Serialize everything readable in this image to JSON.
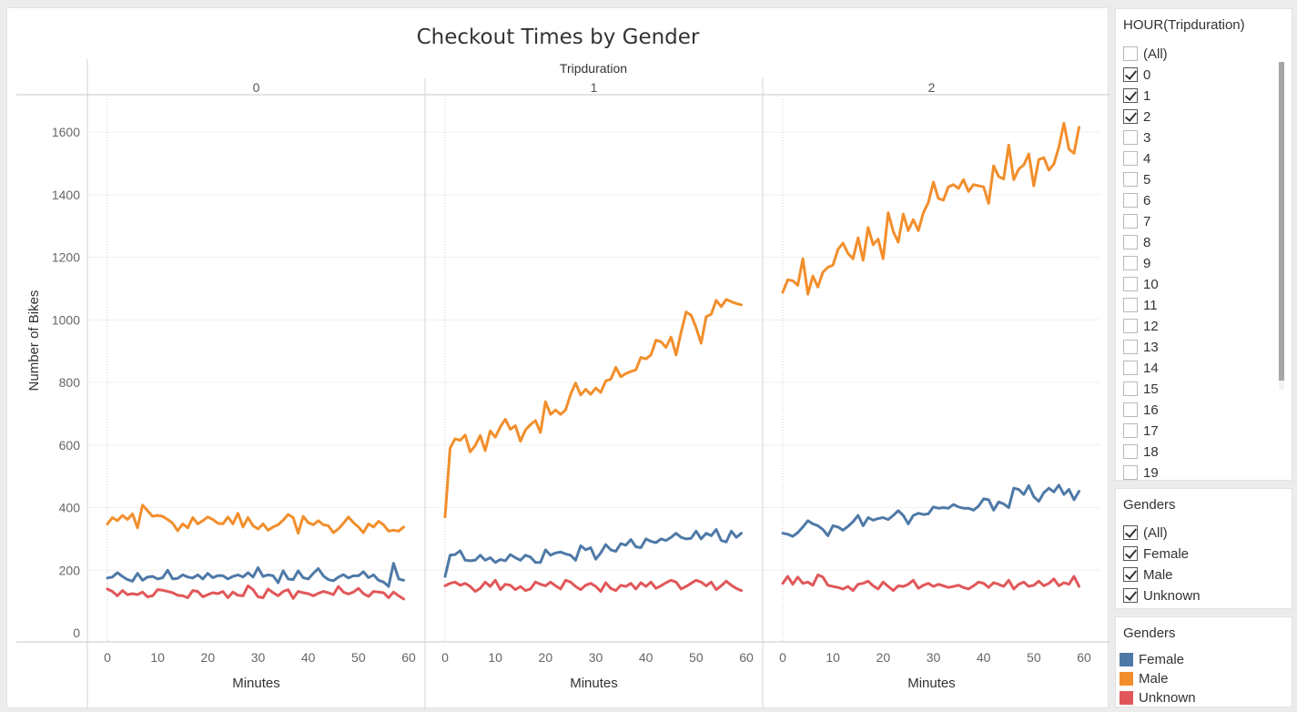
{
  "chart_data": {
    "type": "line",
    "title": "Checkout Times by Gender",
    "column_header": "Tripduration",
    "panes": [
      "0",
      "1",
      "2"
    ],
    "xlabel": "Minutes",
    "ylabel": "Number of Bikes",
    "xlim": [
      0,
      60
    ],
    "ylim": [
      0,
      1700
    ],
    "x_ticks": [
      0,
      10,
      20,
      30,
      40,
      50,
      60
    ],
    "y_ticks": [
      0,
      200,
      400,
      600,
      800,
      1000,
      1200,
      1400,
      1600
    ],
    "grid": true,
    "legend_position": "right",
    "x": [
      0,
      1,
      2,
      3,
      4,
      5,
      6,
      7,
      8,
      9,
      10,
      11,
      12,
      13,
      14,
      15,
      16,
      17,
      18,
      19,
      20,
      21,
      22,
      23,
      24,
      25,
      26,
      27,
      28,
      29,
      30,
      31,
      32,
      33,
      34,
      35,
      36,
      37,
      38,
      39,
      40,
      41,
      42,
      43,
      44,
      45,
      46,
      47,
      48,
      49,
      50,
      51,
      52,
      53,
      54,
      55,
      56,
      57,
      58,
      59
    ],
    "series": [
      {
        "name": "Female",
        "color": "#4e79a7",
        "values_by_pane": [
          [
            175,
            178,
            192,
            180,
            170,
            165,
            190,
            168,
            178,
            180,
            172,
            176,
            200,
            172,
            174,
            185,
            178,
            175,
            185,
            172,
            190,
            176,
            183,
            182,
            172,
            180,
            185,
            178,
            192,
            178,
            208,
            180,
            185,
            182,
            160,
            198,
            172,
            170,
            198,
            176,
            172,
            190,
            205,
            182,
            170,
            166,
            178,
            186,
            175,
            182,
            182,
            195,
            176,
            185,
            168,
            162,
            148,
            222,
            172,
            168
          ],
          [
            180,
            248,
            250,
            262,
            232,
            230,
            232,
            248,
            232,
            240,
            225,
            234,
            230,
            250,
            240,
            232,
            248,
            242,
            225,
            225,
            265,
            248,
            255,
            258,
            252,
            248,
            232,
            278,
            265,
            272,
            235,
            255,
            282,
            265,
            260,
            285,
            280,
            298,
            275,
            272,
            300,
            292,
            288,
            300,
            295,
            305,
            318,
            305,
            300,
            302,
            325,
            300,
            318,
            310,
            330,
            295,
            290,
            325,
            305,
            318
          ],
          [
            318,
            315,
            308,
            320,
            338,
            358,
            348,
            342,
            330,
            310,
            342,
            338,
            328,
            340,
            355,
            375,
            342,
            368,
            360,
            365,
            368,
            362,
            375,
            390,
            375,
            348,
            375,
            382,
            378,
            380,
            402,
            398,
            400,
            398,
            410,
            402,
            398,
            398,
            392,
            405,
            428,
            425,
            392,
            418,
            412,
            400,
            462,
            458,
            442,
            470,
            435,
            420,
            448,
            462,
            450,
            472,
            442,
            458,
            425,
            452
          ]
        ]
      },
      {
        "name": "Male",
        "color": "#f28e2b",
        "values_by_pane": [
          [
            348,
            368,
            358,
            375,
            362,
            380,
            335,
            408,
            390,
            372,
            375,
            372,
            362,
            350,
            326,
            348,
            335,
            368,
            348,
            358,
            370,
            362,
            350,
            348,
            370,
            348,
            382,
            338,
            368,
            342,
            332,
            348,
            328,
            338,
            345,
            360,
            378,
            368,
            318,
            372,
            352,
            345,
            358,
            345,
            342,
            320,
            332,
            350,
            370,
            352,
            338,
            320,
            348,
            338,
            356,
            345,
            325,
            328,
            325,
            338
          ],
          [
            370,
            590,
            620,
            615,
            632,
            578,
            598,
            630,
            582,
            645,
            625,
            658,
            682,
            650,
            662,
            612,
            648,
            665,
            678,
            640,
            738,
            698,
            712,
            698,
            712,
            762,
            798,
            760,
            778,
            762,
            782,
            768,
            805,
            810,
            848,
            818,
            828,
            835,
            840,
            880,
            875,
            888,
            935,
            930,
            912,
            945,
            888,
            960,
            1025,
            1015,
            975,
            925,
            1010,
            1018,
            1062,
            1042,
            1065,
            1058,
            1052,
            1048
          ],
          [
            1088,
            1128,
            1125,
            1110,
            1195,
            1082,
            1140,
            1105,
            1152,
            1168,
            1175,
            1225,
            1245,
            1212,
            1195,
            1262,
            1190,
            1295,
            1240,
            1258,
            1195,
            1342,
            1282,
            1248,
            1338,
            1285,
            1320,
            1285,
            1342,
            1375,
            1440,
            1388,
            1382,
            1425,
            1432,
            1420,
            1448,
            1410,
            1432,
            1428,
            1425,
            1372,
            1492,
            1458,
            1450,
            1558,
            1448,
            1482,
            1495,
            1530,
            1428,
            1512,
            1518,
            1478,
            1498,
            1552,
            1628,
            1545,
            1532,
            1615
          ]
        ]
      },
      {
        "name": "Unknown",
        "color": "#e15759",
        "values_by_pane": [
          [
            140,
            132,
            118,
            135,
            122,
            125,
            122,
            130,
            115,
            118,
            138,
            136,
            132,
            128,
            120,
            118,
            112,
            135,
            132,
            115,
            122,
            128,
            125,
            132,
            112,
            130,
            120,
            118,
            150,
            138,
            115,
            112,
            140,
            128,
            118,
            132,
            138,
            110,
            132,
            128,
            125,
            118,
            126,
            132,
            128,
            122,
            148,
            130,
            124,
            130,
            142,
            125,
            116,
            132,
            130,
            128,
            112,
            130,
            118,
            108
          ],
          [
            150,
            158,
            162,
            152,
            158,
            148,
            132,
            142,
            162,
            148,
            168,
            138,
            155,
            152,
            138,
            148,
            135,
            140,
            162,
            155,
            150,
            162,
            150,
            140,
            168,
            162,
            148,
            138,
            152,
            158,
            148,
            132,
            160,
            142,
            135,
            152,
            148,
            158,
            140,
            160,
            148,
            162,
            142,
            150,
            160,
            168,
            162,
            140,
            148,
            158,
            168,
            162,
            150,
            162,
            138,
            150,
            165,
            152,
            142,
            135
          ],
          [
            158,
            180,
            155,
            178,
            158,
            162,
            152,
            185,
            178,
            152,
            148,
            145,
            140,
            148,
            135,
            155,
            158,
            165,
            150,
            140,
            162,
            148,
            135,
            150,
            148,
            155,
            168,
            142,
            152,
            158,
            148,
            155,
            150,
            145,
            148,
            152,
            145,
            140,
            150,
            162,
            158,
            145,
            160,
            155,
            148,
            168,
            140,
            155,
            162,
            148,
            152,
            165,
            150,
            158,
            172,
            150,
            160,
            155,
            180,
            148
          ]
        ]
      }
    ]
  },
  "filters": {
    "hour": {
      "title": "HOUR(Tripduration)",
      "items": [
        {
          "label": "(All)",
          "checked": false
        },
        {
          "label": "0",
          "checked": true
        },
        {
          "label": "1",
          "checked": true
        },
        {
          "label": "2",
          "checked": true
        },
        {
          "label": "3",
          "checked": false
        },
        {
          "label": "4",
          "checked": false
        },
        {
          "label": "5",
          "checked": false
        },
        {
          "label": "6",
          "checked": false
        },
        {
          "label": "7",
          "checked": false
        },
        {
          "label": "8",
          "checked": false
        },
        {
          "label": "9",
          "checked": false
        },
        {
          "label": "10",
          "checked": false
        },
        {
          "label": "11",
          "checked": false
        },
        {
          "label": "12",
          "checked": false
        },
        {
          "label": "13",
          "checked": false
        },
        {
          "label": "14",
          "checked": false
        },
        {
          "label": "15",
          "checked": false
        },
        {
          "label": "16",
          "checked": false
        },
        {
          "label": "17",
          "checked": false
        },
        {
          "label": "18",
          "checked": false
        },
        {
          "label": "19",
          "checked": false
        }
      ]
    },
    "genders": {
      "title": "Genders",
      "items": [
        {
          "label": "(All)",
          "checked": true
        },
        {
          "label": "Female",
          "checked": true
        },
        {
          "label": "Male",
          "checked": true
        },
        {
          "label": "Unknown",
          "checked": true
        }
      ]
    }
  },
  "legend": {
    "title": "Genders",
    "items": [
      {
        "label": "Female",
        "color": "#4e79a7"
      },
      {
        "label": "Male",
        "color": "#f28e2b"
      },
      {
        "label": "Unknown",
        "color": "#e15759"
      }
    ]
  }
}
